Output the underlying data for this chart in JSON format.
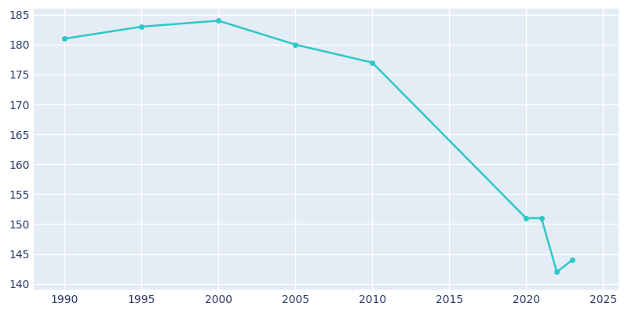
{
  "years": [
    1990,
    1995,
    2000,
    2005,
    2010,
    2020,
    2021,
    2022,
    2023
  ],
  "population": [
    181,
    183,
    184,
    180,
    177,
    151,
    151,
    142,
    144
  ],
  "line_color": "#2EC8C8",
  "axes_background_color": "#E4ECF5",
  "figure_background_color": "#FFFFFF",
  "grid_color": "#FFFFFF",
  "text_color": "#2B3A67",
  "xlim": [
    1988,
    2026
  ],
  "ylim": [
    139,
    186
  ],
  "yticks": [
    140,
    145,
    150,
    155,
    160,
    165,
    170,
    175,
    180,
    185
  ],
  "xticks": [
    1990,
    1995,
    2000,
    2005,
    2010,
    2015,
    2020,
    2025
  ],
  "linewidth": 1.8,
  "marker": "o",
  "markersize": 4
}
